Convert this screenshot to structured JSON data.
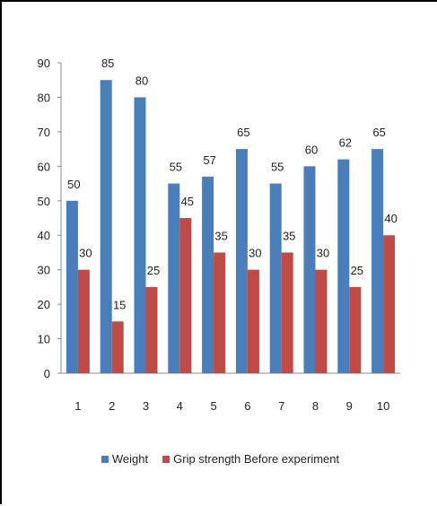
{
  "chart_data": {
    "type": "bar",
    "categories": [
      "1",
      "2",
      "3",
      "4",
      "5",
      "6",
      "7",
      "8",
      "9",
      "10"
    ],
    "series": [
      {
        "name": "Weight",
        "values": [
          50,
          85,
          80,
          55,
          57,
          65,
          55,
          60,
          62,
          65
        ],
        "color": "#4a7ebb"
      },
      {
        "name": "Grip strength Before experiment",
        "values": [
          30,
          15,
          25,
          45,
          35,
          30,
          35,
          30,
          25,
          40
        ],
        "color": "#be4b48"
      }
    ],
    "ylim": [
      0,
      90
    ],
    "yticks": [
      "0",
      "10",
      "20",
      "30",
      "40",
      "50",
      "60",
      "70",
      "80",
      "90"
    ],
    "grid": false,
    "data_labels": true,
    "legend": "bottom",
    "title": "",
    "xlabel": "",
    "ylabel": ""
  }
}
